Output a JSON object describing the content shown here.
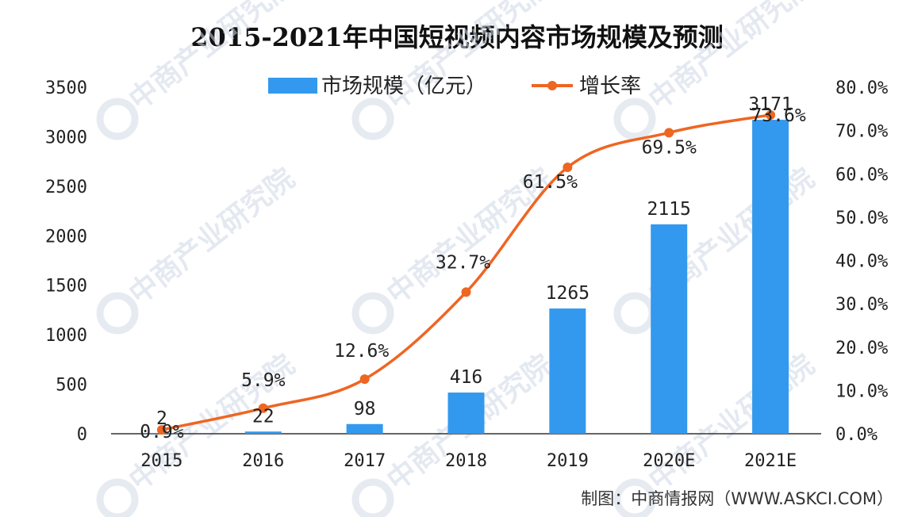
{
  "title": "2015-2021年中国短视频内容市场规模及预测",
  "source": "制图：中商情报网（WWW.ASKCI.COM）",
  "watermark": "中商产业研究院",
  "colors": {
    "bar": "#3399ee",
    "line": "#ee6622",
    "axis": "#333333",
    "text": "#222222"
  },
  "chart_data": {
    "type": "bar",
    "categories": [
      "2015",
      "2016",
      "2017",
      "2018",
      "2019",
      "2020E",
      "2021E"
    ],
    "series": [
      {
        "name": "市场规模（亿元）",
        "type": "bar",
        "axis": "left",
        "values": [
          2,
          22,
          98,
          416,
          1265,
          2115,
          3171
        ],
        "labels": [
          "2",
          "22",
          "98",
          "416",
          "1265",
          "2115",
          "3171"
        ]
      },
      {
        "name": "增长率",
        "type": "line",
        "axis": "right",
        "values": [
          0.9,
          5.9,
          12.6,
          32.7,
          61.5,
          69.5,
          73.6
        ],
        "labels": [
          "0.9%",
          "5.9%",
          "12.6%",
          "32.7%",
          "61.5%",
          "69.5%",
          "73.6%"
        ]
      }
    ],
    "ylim_left": [
      0,
      3500
    ],
    "ylim_right": [
      0,
      80
    ],
    "left_ticks": [
      "0",
      "500",
      "1000",
      "1500",
      "2000",
      "2500",
      "3000",
      "3500"
    ],
    "right_ticks": [
      "0.0%",
      "10.0%",
      "20.0%",
      "30.0%",
      "40.0%",
      "50.0%",
      "60.0%",
      "70.0%",
      "80.0%"
    ],
    "legend_position": "top-center",
    "grid": false
  }
}
